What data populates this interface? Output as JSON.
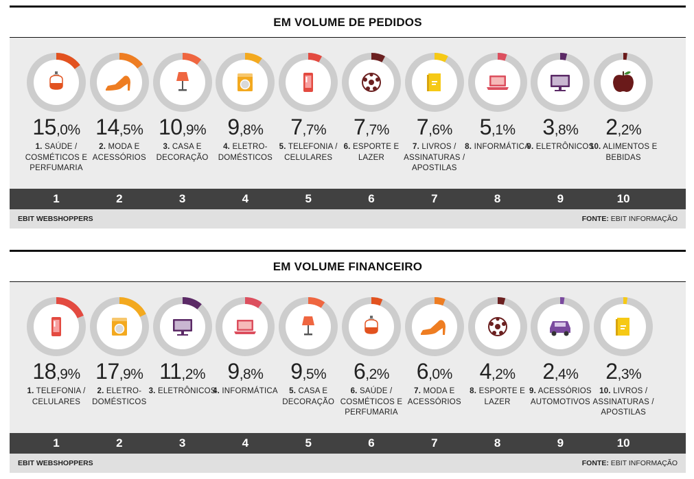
{
  "charts": [
    {
      "title": "EM VOLUME DE PEDIDOS",
      "source_left": "EBIT WEBSHOPPERS",
      "source_prefix": "FONTE:",
      "source_name": "EBIT INFORMAÇÃO",
      "items": [
        {
          "rank": "1",
          "value": 15.0,
          "int": "15",
          "dec": ",0%",
          "num": "1.",
          "label": "SAÚDE / COSMÉTICOS E PERFUMARIA",
          "icon": "perfume-icon",
          "color": "#e2521f"
        },
        {
          "rank": "2",
          "value": 14.5,
          "int": "14",
          "dec": ",5%",
          "num": "2.",
          "label": "MODA E ACESSÓRIOS",
          "icon": "high-heel-icon",
          "color": "#ee7d22"
        },
        {
          "rank": "3",
          "value": 10.9,
          "int": "10",
          "dec": ",9%",
          "num": "3.",
          "label": "CASA E DECORAÇÃO",
          "icon": "lamp-icon",
          "color": "#ef6640"
        },
        {
          "rank": "4",
          "value": 9.8,
          "int": "9",
          "dec": ",8%",
          "num": "4.",
          "label": "ELETRO-DOMÉSTICOS",
          "icon": "washing-machine-icon",
          "color": "#f3a91f"
        },
        {
          "rank": "5",
          "value": 7.7,
          "int": "7",
          "dec": ",7%",
          "num": "5.",
          "label": "TELEFONIA / CELULARES",
          "icon": "phone-icon",
          "color": "#e34a40"
        },
        {
          "rank": "6",
          "value": 7.7,
          "int": "7",
          "dec": ",7%",
          "num": "6.",
          "label": "ESPORTE E LAZER",
          "icon": "soccer-ball-icon",
          "color": "#6b2020"
        },
        {
          "rank": "7",
          "value": 7.6,
          "int": "7",
          "dec": ",6%",
          "num": "7.",
          "label": "LIVROS / ASSINATURAS / APOSTILAS",
          "icon": "book-icon",
          "color": "#f6c915"
        },
        {
          "rank": "8",
          "value": 5.1,
          "int": "5",
          "dec": ",1%",
          "num": "8.",
          "label": "INFORMÁTICA",
          "icon": "laptop-icon",
          "color": "#dc4f5e"
        },
        {
          "rank": "9",
          "value": 3.8,
          "int": "3",
          "dec": ",8%",
          "num": "9.",
          "label": "ELETRÔNICOS",
          "icon": "tv-icon",
          "color": "#5b2a66"
        },
        {
          "rank": "10",
          "value": 2.2,
          "int": "2",
          "dec": ",2%",
          "num": "10.",
          "label": "ALIMENTOS E BEBIDAS",
          "icon": "apple-icon",
          "color": "#6a1a1a"
        }
      ]
    },
    {
      "title": "EM VOLUME FINANCEIRO",
      "source_left": "EBIT WEBSHOPPERS",
      "source_prefix": "FONTE:",
      "source_name": "EBIT INFORMAÇÃO",
      "items": [
        {
          "rank": "1",
          "value": 18.9,
          "int": "18",
          "dec": ",9%",
          "num": "1.",
          "label": "TELEFONIA / CELULARES",
          "icon": "phone-icon",
          "color": "#e34a40"
        },
        {
          "rank": "2",
          "value": 17.9,
          "int": "17",
          "dec": ",9%",
          "num": "2.",
          "label": "ELETRO-DOMÉSTICOS",
          "icon": "washing-machine-icon",
          "color": "#f3a91f"
        },
        {
          "rank": "3",
          "value": 11.2,
          "int": "11",
          "dec": ",2%",
          "num": "3.",
          "label": "ELETRÔNICOS",
          "icon": "tv-icon",
          "color": "#5b2a66"
        },
        {
          "rank": "4",
          "value": 9.8,
          "int": "9",
          "dec": ",8%",
          "num": "4.",
          "label": "INFORMÁTICA",
          "icon": "laptop-icon",
          "color": "#dc4f5e"
        },
        {
          "rank": "5",
          "value": 9.5,
          "int": "9",
          "dec": ",5%",
          "num": "5.",
          "label": "CASA E DECORAÇÃO",
          "icon": "lamp-icon",
          "color": "#ef6640"
        },
        {
          "rank": "6",
          "value": 6.2,
          "int": "6",
          "dec": ",2%",
          "num": "6.",
          "label": "SAÚDE / COSMÉTICOS E PERFUMARIA",
          "icon": "perfume-icon",
          "color": "#e2521f"
        },
        {
          "rank": "7",
          "value": 6.0,
          "int": "6",
          "dec": ",0%",
          "num": "7.",
          "label": "MODA E ACESSÓRIOS",
          "icon": "high-heel-icon",
          "color": "#ee7d22"
        },
        {
          "rank": "8",
          "value": 4.2,
          "int": "4",
          "dec": ",2%",
          "num": "8.",
          "label": "ESPORTE E LAZER",
          "icon": "soccer-ball-icon",
          "color": "#6b2020"
        },
        {
          "rank": "9",
          "value": 2.4,
          "int": "2",
          "dec": ",4%",
          "num": "9.",
          "label": "ACESSÓRIOS AUTOMOTIVOS",
          "icon": "car-icon",
          "color": "#7a4a9e"
        },
        {
          "rank": "10",
          "value": 2.3,
          "int": "2",
          "dec": ",3%",
          "num": "10.",
          "label": "LIVROS / ASSINATURAS / APOSTILAS",
          "icon": "book-icon",
          "color": "#f6c915"
        }
      ]
    }
  ],
  "chart_data": [
    {
      "type": "pie",
      "title": "EM VOLUME DE PEDIDOS",
      "categories": [
        "SAÚDE / COSMÉTICOS E PERFUMARIA",
        "MODA E ACESSÓRIOS",
        "CASA E DECORAÇÃO",
        "ELETRO-DOMÉSTICOS",
        "TELEFONIA / CELULARES",
        "ESPORTE E LAZER",
        "LIVROS / ASSINATURAS / APOSTILAS",
        "INFORMÁTICA",
        "ELETRÔNICOS",
        "ALIMENTOS E BEBIDAS"
      ],
      "values": [
        15.0,
        14.5,
        10.9,
        9.8,
        7.7,
        7.7,
        7.6,
        5.1,
        3.8,
        2.2
      ]
    },
    {
      "type": "pie",
      "title": "EM VOLUME FINANCEIRO",
      "categories": [
        "TELEFONIA / CELULARES",
        "ELETRO-DOMÉSTICOS",
        "ELETRÔNICOS",
        "INFORMÁTICA",
        "CASA E DECORAÇÃO",
        "SAÚDE / COSMÉTICOS E PERFUMARIA",
        "MODA E ACESSÓRIOS",
        "ESPORTE E LAZER",
        "ACESSÓRIOS AUTOMOTIVOS",
        "LIVROS / ASSINATURAS / APOSTILAS"
      ],
      "values": [
        18.9,
        17.9,
        11.2,
        9.8,
        9.5,
        6.2,
        6.0,
        4.2,
        2.4,
        2.3
      ]
    }
  ]
}
